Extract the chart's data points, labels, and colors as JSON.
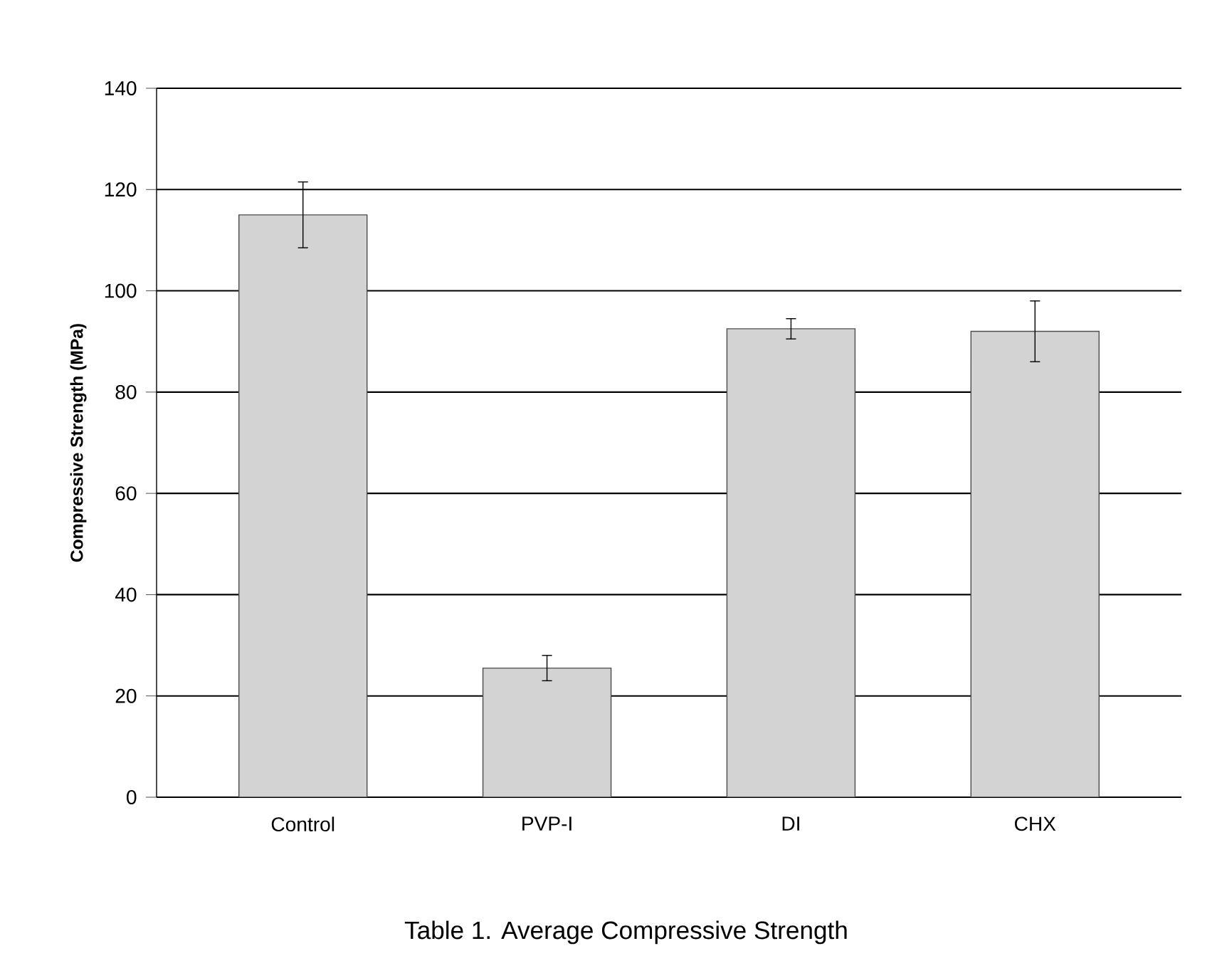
{
  "chart_data": {
    "type": "bar",
    "ylabel": "Compressive Strength (MPa)",
    "categories": [
      "Control",
      "PVP-I",
      "DI",
      "CHX"
    ],
    "values": [
      115,
      25.5,
      92.5,
      92
    ],
    "errors": [
      6.5,
      2.5,
      2,
      6
    ],
    "color": "#d3d3d3",
    "ylim": [
      0,
      140
    ],
    "yticks": [
      0,
      20,
      40,
      60,
      80,
      100,
      120,
      140
    ],
    "grid": "y",
    "annotations": [
      "Table 1. Average Compressive Strength"
    ]
  }
}
